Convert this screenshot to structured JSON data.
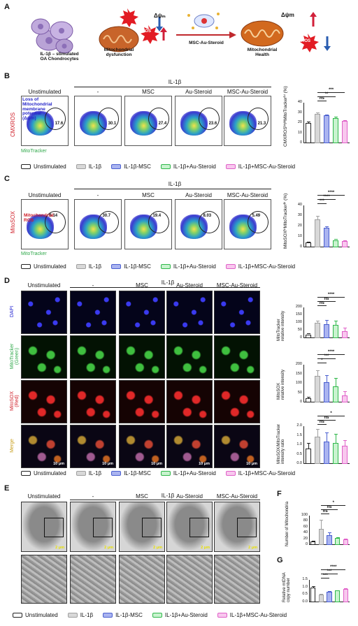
{
  "panels": {
    "A": "A",
    "B": "B",
    "C": "C",
    "D": "D",
    "E": "E",
    "F": "F",
    "G": "G"
  },
  "schematic": {
    "chondro_label": "IL-1β – stimulated\nOA Chondrocytes",
    "ros": "ROS",
    "mito_dysfunction": "Mitochondrial\ndysfunction",
    "delta_psi_m": "Δψₘ",
    "treatment": "MSC-Au-Steroid",
    "mito_health": "Mitochondrial\nHealth",
    "delta_psi_m2": "Δψm",
    "colors": {
      "ros": "#e21b23",
      "arrow_down": "#2a5db0",
      "arrow_up": "#d1203a",
      "treat_arrow": "#c0282d",
      "mito": "#d2691e"
    }
  },
  "groups": {
    "il1b": "IL-1β",
    "cols": [
      "Unstimulated",
      "-",
      "MSC",
      "Au-Steroid",
      "MSC-Au-Steroid"
    ]
  },
  "B": {
    "annotation": "Loss of\nMitochondrial\nmembrane\npotential\n(Δψm)",
    "yaxis": "CMXROS",
    "xaxis": "MitoTracker",
    "gates": [
      "17.6",
      "30.1",
      "27.4",
      "23.6",
      "21.3"
    ],
    "chart_ylabel": "CMXROSʰⁱᵍʰMitoTrackerʰⁱ (%)",
    "ticks": [
      "40",
      "30",
      "20",
      "10",
      "0"
    ],
    "sig": [
      "***",
      "**",
      "ns"
    ]
  },
  "C": {
    "annotation": "Mitochondrial\nROS",
    "yaxis": "MitoSOX",
    "xaxis": "MitoTracker",
    "gates": [
      "5.14",
      "30.7",
      "19.4",
      "8.03",
      "5.49"
    ],
    "chart_ylabel": "MitoSOXʰⁱMitoTrackerʰⁱ (%)",
    "ticks": [
      "40",
      "30",
      "20",
      "10",
      "0"
    ],
    "sig": [
      "****",
      "****",
      "***"
    ]
  },
  "D": {
    "rows": [
      "DAPI",
      "MitoTracker\n(Green)",
      "MitoSOX\n(Red)",
      "Merge"
    ],
    "scale": "10 μm",
    "charts": [
      {
        "ylabel": "MitoTracker\nrelative intensity",
        "ticks": [
          "200",
          "150",
          "100",
          "50",
          "0"
        ],
        "sig": [
          "****",
          "ns",
          "ns"
        ]
      },
      {
        "ylabel": "MitoSOX\nrelative intensity",
        "ticks": [
          "200",
          "150",
          "100",
          "50",
          "0"
        ],
        "sig": [
          "****",
          "***",
          "*"
        ]
      },
      {
        "ylabel": "MitoSOX/MitoTracker\nintensity ratio",
        "ticks": [
          "2.0",
          "1.5",
          "1.0",
          "0.5",
          "0.0"
        ],
        "sig": [
          "*",
          "ns",
          "ns"
        ]
      }
    ]
  },
  "E": {
    "scale": "2 μm"
  },
  "F": {
    "ylabel": "Number of Mitochondria",
    "ticks": [
      "100",
      "80",
      "60",
      "40",
      "20",
      "0"
    ],
    "sig": [
      "*",
      "ns",
      "ns"
    ]
  },
  "G": {
    "ylabel": "Relative mtDNA\ncopy number",
    "ticks": [
      "1.5",
      "1.0",
      "0.5",
      "0.0"
    ],
    "sig": [
      "****",
      "***",
      "***"
    ]
  },
  "legend": [
    "Unstimulated",
    "IL-1β",
    "IL-1β-MSC",
    "IL-1β+Au-Steroid",
    "IL-1β+MSC-Au-Steroid"
  ],
  "legend_colors": [
    {
      "border": "#222222",
      "fill": "#ffffff"
    },
    {
      "border": "#a0a0a0",
      "fill": "#d8d8d8"
    },
    {
      "border": "#4a5fd0",
      "fill": "#aab4f0"
    },
    {
      "border": "#2fb84a",
      "fill": "#c9f3cf"
    },
    {
      "border": "#e060c8",
      "fill": "#f8c8ee"
    }
  ],
  "chart_data": [
    {
      "type": "bar",
      "categories": [
        "Unstimulated",
        "IL-1β",
        "IL-1β-MSC",
        "IL-1β+Au-Steroid",
        "IL-1β+MSC-Au-Steroid"
      ],
      "values": [
        20,
        29,
        27.5,
        25,
        22
      ],
      "errors": [
        1.5,
        1.2,
        1,
        1.5,
        1
      ],
      "ylim": [
        0,
        40
      ],
      "ylabel": "CMXROSʰⁱᵍʰMitoTrackerʰⁱ (%)"
    },
    {
      "type": "bar",
      "categories": [
        "Unstimulated",
        "IL-1β",
        "IL-1β-MSC",
        "IL-1β+Au-Steroid",
        "IL-1β+MSC-Au-Steroid"
      ],
      "values": [
        5,
        27,
        19,
        7,
        6
      ],
      "errors": [
        0.5,
        3,
        1,
        0.8,
        0.5
      ],
      "ylim": [
        0,
        40
      ],
      "ylabel": "MitoSOXʰⁱMitoTrackerʰⁱ (%)"
    },
    {
      "type": "bar",
      "categories": [
        "Unstimulated",
        "IL-1β",
        "IL-1β-MSC",
        "IL-1β+Au-Steroid",
        "IL-1β+MSC-Au-Steroid"
      ],
      "values": [
        25,
        100,
        92,
        85,
        45
      ],
      "errors": [
        8,
        15,
        25,
        30,
        25
      ],
      "ylim": [
        0,
        200
      ],
      "ylabel": "MitoTracker relative intensity"
    },
    {
      "type": "bar",
      "categories": [
        "Unstimulated",
        "IL-1β",
        "IL-1β-MSC",
        "IL-1β+Au-Steroid",
        "IL-1β+MSC-Au-Steroid"
      ],
      "values": [
        22,
        140,
        108,
        85,
        38
      ],
      "errors": [
        8,
        30,
        35,
        45,
        20
      ],
      "ylim": [
        0,
        200
      ],
      "ylabel": "MitoSOX relative intensity"
    },
    {
      "type": "bar",
      "categories": [
        "Unstimulated",
        "IL-1β",
        "IL-1β-MSC",
        "IL-1β+Au-Steroid",
        "IL-1β+MSC-Au-Steroid"
      ],
      "values": [
        0.8,
        1.45,
        1.2,
        1.1,
        0.95
      ],
      "errors": [
        0.3,
        0.4,
        0.45,
        0.5,
        0.3
      ],
      "ylim": [
        0,
        2
      ],
      "ylabel": "MitoSOX/MitoTracker intensity ratio"
    },
    {
      "type": "bar",
      "categories": [
        "Unstimulated",
        "IL-1β",
        "IL-1β-MSC",
        "IL-1β+Au-Steroid",
        "IL-1β+MSC-Au-Steroid"
      ],
      "values": [
        12,
        55,
        33,
        23,
        20
      ],
      "errors": [
        3,
        30,
        10,
        3,
        2
      ],
      "ylim": [
        0,
        100
      ],
      "ylabel": "Number of Mitochondria"
    },
    {
      "type": "bar",
      "categories": [
        "Unstimulated",
        "IL-1β",
        "IL-1β-MSC",
        "IL-1β+Au-Steroid",
        "IL-1β+MSC-Au-Steroid"
      ],
      "values": [
        1.0,
        0.5,
        0.68,
        0.78,
        0.88
      ],
      "errors": [
        0.06,
        0.04,
        0.05,
        0.04,
        0.05
      ],
      "ylim": [
        0,
        1.5
      ],
      "ylabel": "Relative mtDNA copy number"
    }
  ]
}
